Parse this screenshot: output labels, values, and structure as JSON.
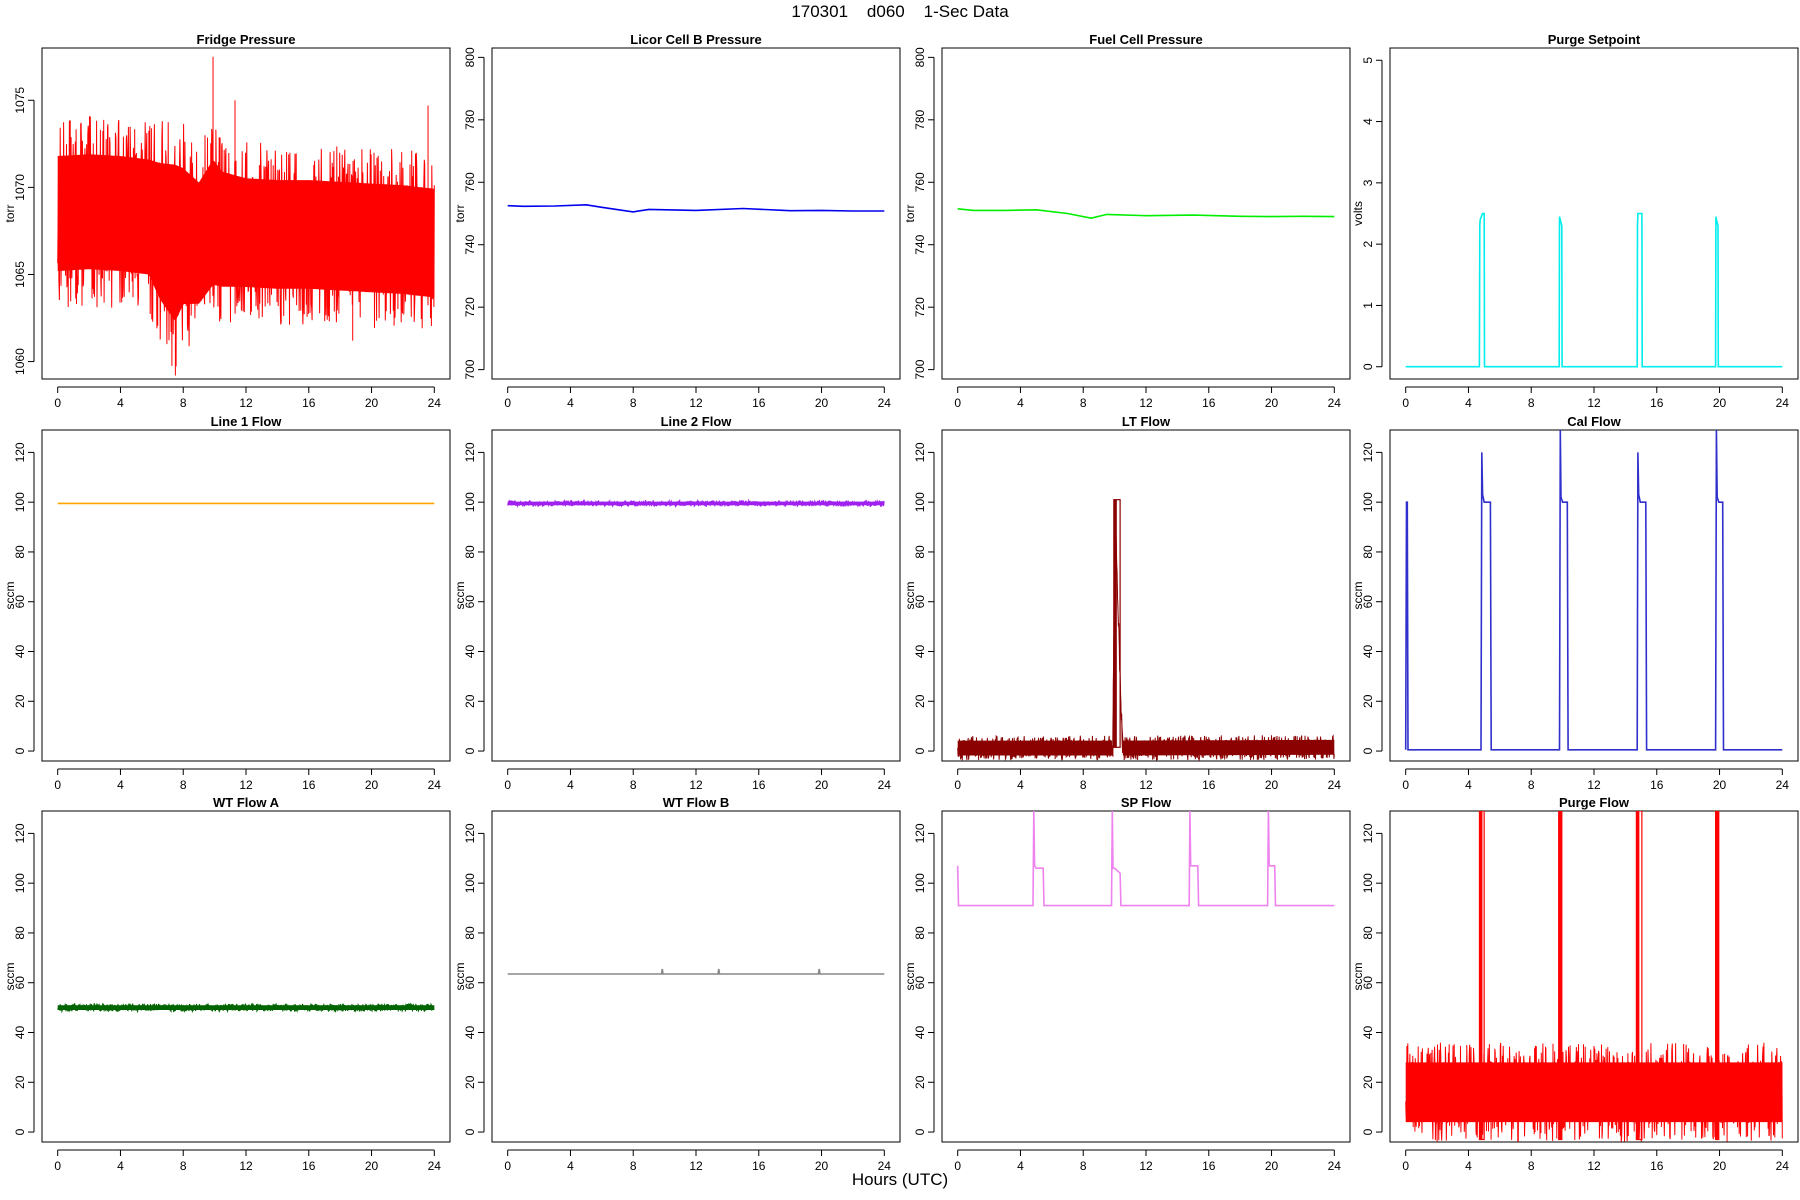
{
  "page": {
    "title": "170301    d060    1-Sec Data",
    "xlabel": "Hours (UTC)"
  },
  "chart_data": [
    {
      "type": "line",
      "title": "Fridge Pressure",
      "ylabel": "torr",
      "xlim": [
        -1,
        25
      ],
      "ylim": [
        1059,
        1078
      ],
      "xticks": [
        0,
        4,
        8,
        12,
        16,
        20,
        24
      ],
      "yticks": [
        1060,
        1065,
        1070,
        1075
      ],
      "color": "#ff0000",
      "series": [
        {
          "x": [
            0,
            2,
            4,
            5.8,
            6.5,
            7.5,
            8,
            9,
            9.9,
            10.5,
            12,
            14,
            16,
            18,
            20,
            22,
            24
          ],
          "y": [
            1068.5,
            1068.6,
            1068.5,
            1068.3,
            1067.5,
            1066.8,
            1067.2,
            1066.8,
            1068.0,
            1067.6,
            1067.4,
            1067.3,
            1067.3,
            1067.2,
            1067.1,
            1067.0,
            1066.8
          ],
          "band": [
            5.5,
            5.5,
            5.5,
            5.5,
            6.5,
            7.5,
            6.5,
            5.8,
            6.0,
            5.5,
            5.2,
            5.2,
            5.2,
            5.2,
            5.2,
            5.2,
            5.2
          ]
        }
      ],
      "spikes": [
        {
          "x": 7.5,
          "y": 1059.2
        },
        {
          "x": 9.9,
          "y": 1077.5
        },
        {
          "x": 11.3,
          "y": 1075.0
        },
        {
          "x": 23.6,
          "y": 1074.7
        },
        {
          "x": 1.2,
          "y": 1063.3
        },
        {
          "x": 18.8,
          "y": 1061.2
        }
      ]
    },
    {
      "type": "line",
      "title": "Licor Cell B Pressure",
      "ylabel": "torr",
      "xlim": [
        -1,
        25
      ],
      "ylim": [
        697,
        803
      ],
      "xticks": [
        0,
        4,
        8,
        12,
        16,
        20,
        24
      ],
      "yticks": [
        700,
        720,
        740,
        760,
        780,
        800
      ],
      "color": "#0000ee",
      "series": [
        {
          "x": [
            0,
            1,
            3,
            5,
            6,
            8,
            9,
            12,
            15,
            18,
            20,
            22,
            24
          ],
          "y": [
            752.5,
            752.3,
            752.4,
            752.8,
            752.0,
            750.5,
            751.3,
            751.0,
            751.6,
            750.9,
            751.0,
            750.8,
            750.8
          ]
        }
      ]
    },
    {
      "type": "line",
      "title": "Fuel Cell Pressure",
      "ylabel": "torr",
      "xlim": [
        -1,
        25
      ],
      "ylim": [
        697,
        803
      ],
      "xticks": [
        0,
        4,
        8,
        12,
        16,
        20,
        24
      ],
      "yticks": [
        700,
        720,
        740,
        760,
        780,
        800
      ],
      "color": "#00ee00",
      "series": [
        {
          "x": [
            0,
            1,
            3,
            5,
            7,
            8.5,
            9.5,
            12,
            15,
            18,
            20,
            22,
            24
          ],
          "y": [
            751.5,
            751.0,
            751.0,
            751.2,
            750.0,
            748.5,
            749.7,
            749.3,
            749.5,
            749.1,
            749.0,
            749.1,
            749.0
          ]
        }
      ]
    },
    {
      "type": "line",
      "title": "Purge Setpoint",
      "ylabel": "volts",
      "xlim": [
        -1,
        25
      ],
      "ylim": [
        -0.2,
        5.2
      ],
      "xticks": [
        0,
        4,
        8,
        12,
        16,
        20,
        24
      ],
      "yticks": [
        0,
        1,
        2,
        3,
        4,
        5
      ],
      "color": "#00eeee",
      "series": [
        {
          "x": [
            0,
            4.7,
            4.72,
            4.75,
            4.9,
            4.95,
            5.0,
            5.02,
            9.78,
            9.8,
            9.85,
            9.95,
            9.97,
            14.75,
            14.77,
            14.8,
            15.0,
            15.05,
            15.07,
            19.75,
            19.77,
            19.8,
            19.9,
            19.92,
            24
          ],
          "y": [
            0,
            0,
            2.3,
            2.4,
            2.5,
            2.5,
            2.5,
            0,
            0,
            2.45,
            2.4,
            2.3,
            0,
            0,
            2.3,
            2.5,
            2.5,
            2.5,
            0,
            0,
            2.45,
            2.4,
            2.3,
            0,
            0
          ]
        }
      ]
    },
    {
      "type": "line",
      "title": "Line 1 Flow",
      "ylabel": "sccm",
      "xlim": [
        -1,
        25
      ],
      "ylim": [
        -4,
        129
      ],
      "xticks": [
        0,
        4,
        8,
        12,
        16,
        20,
        24
      ],
      "yticks": [
        0,
        20,
        40,
        60,
        80,
        100,
        120
      ],
      "color": "#ffa500",
      "series": [
        {
          "x": [
            0,
            24
          ],
          "y": [
            99.5,
            99.5
          ]
        }
      ]
    },
    {
      "type": "line",
      "title": "Line 2 Flow",
      "ylabel": "sccm",
      "xlim": [
        -1,
        25
      ],
      "ylim": [
        -4,
        129
      ],
      "xticks": [
        0,
        4,
        8,
        12,
        16,
        20,
        24
      ],
      "yticks": [
        0,
        20,
        40,
        60,
        80,
        100,
        120
      ],
      "color": "#a020f0",
      "series": [
        {
          "x": [
            0,
            24
          ],
          "y": [
            99.5,
            99.5
          ],
          "band": [
            1.2,
            1.2
          ]
        }
      ]
    },
    {
      "type": "line",
      "title": "LT Flow",
      "ylabel": "sccm",
      "xlim": [
        -1,
        25
      ],
      "ylim": [
        -4,
        129
      ],
      "xticks": [
        0,
        4,
        8,
        12,
        16,
        20,
        24
      ],
      "yticks": [
        0,
        20,
        40,
        60,
        80,
        100,
        120
      ],
      "color": "#8b0000",
      "series": [
        {
          "x": [
            0,
            9.9,
            10.0,
            10.5,
            24
          ],
          "y": [
            1.2,
            1.2,
            101,
            1.2,
            1.5
          ],
          "band": [
            5,
            5,
            5,
            5,
            5
          ]
        }
      ],
      "pulses": [
        {
          "x0": 9.95,
          "x1": 10.35,
          "y": 101,
          "base": 1.5
        }
      ]
    },
    {
      "type": "line",
      "title": "Cal Flow",
      "ylabel": "sccm",
      "xlim": [
        -1,
        25
      ],
      "ylim": [
        -4,
        129
      ],
      "xticks": [
        0,
        4,
        8,
        12,
        16,
        20,
        24
      ],
      "yticks": [
        0,
        20,
        40,
        60,
        80,
        100,
        120
      ],
      "color": "#3030cc",
      "series": [
        {
          "x": [
            0,
            0.05,
            0.1,
            0.15,
            4.8,
            4.85,
            4.9,
            5.0,
            5.4,
            5.45,
            9.8,
            9.85,
            9.9,
            10.0,
            10.3,
            10.35,
            14.75,
            14.8,
            14.85,
            14.95,
            15.3,
            15.35,
            19.75,
            19.8,
            19.85,
            19.95,
            20.2,
            20.25,
            24
          ],
          "y": [
            0.5,
            100,
            100,
            0.5,
            0.5,
            120,
            103,
            100,
            100,
            0.5,
            0.5,
            129,
            102,
            100,
            100,
            0.5,
            0.5,
            120,
            103,
            100,
            100,
            0.5,
            0.5,
            129,
            102,
            100,
            100,
            0.5,
            0.5
          ]
        }
      ]
    },
    {
      "type": "line",
      "title": "WT Flow A",
      "ylabel": "sccm",
      "xlim": [
        -1,
        25
      ],
      "ylim": [
        -4,
        129
      ],
      "xticks": [
        0,
        4,
        8,
        12,
        16,
        20,
        24
      ],
      "yticks": [
        0,
        20,
        40,
        60,
        80,
        100,
        120
      ],
      "color": "#006400",
      "series": [
        {
          "x": [
            0,
            24
          ],
          "y": [
            50,
            50
          ],
          "band": [
            1.6,
            1.6
          ]
        }
      ]
    },
    {
      "type": "line",
      "title": "WT Flow B",
      "ylabel": "sccm",
      "xlim": [
        -1,
        25
      ],
      "ylim": [
        -4,
        129
      ],
      "xticks": [
        0,
        4,
        8,
        12,
        16,
        20,
        24
      ],
      "yticks": [
        0,
        20,
        40,
        60,
        80,
        100,
        120
      ],
      "color": "#888888",
      "series": [
        {
          "x": [
            0,
            9.8,
            9.85,
            9.9,
            13.4,
            13.45,
            13.5,
            19.8,
            19.85,
            19.9,
            24
          ],
          "y": [
            63.5,
            63.5,
            65.5,
            63.5,
            63.5,
            65.5,
            63.5,
            63.5,
            65.5,
            63.5,
            63.5
          ]
        }
      ]
    },
    {
      "type": "line",
      "title": "SP Flow",
      "ylabel": "sccm",
      "xlim": [
        -1,
        25
      ],
      "ylim": [
        -4,
        129
      ],
      "xticks": [
        0,
        4,
        8,
        12,
        16,
        20,
        24
      ],
      "yticks": [
        0,
        20,
        40,
        60,
        80,
        100,
        120
      ],
      "color": "#ee82ee",
      "series": [
        {
          "x": [
            0,
            0.05,
            0.15,
            4.8,
            4.85,
            4.9,
            5.0,
            5.45,
            5.5,
            9.8,
            9.85,
            9.9,
            10.0,
            10.35,
            10.4,
            14.75,
            14.8,
            14.85,
            14.95,
            15.3,
            15.35,
            19.75,
            19.8,
            19.85,
            19.95,
            20.2,
            20.25,
            24
          ],
          "y": [
            107,
            91,
            91,
            91,
            129,
            107,
            106,
            106,
            91,
            91,
            129,
            106,
            106,
            104,
            91,
            91,
            129,
            107,
            107,
            107,
            91,
            91,
            129,
            107,
            107,
            107,
            91,
            91
          ]
        }
      ]
    },
    {
      "type": "line",
      "title": "Purge Flow",
      "ylabel": "sccm",
      "xlim": [
        -1,
        25
      ],
      "ylim": [
        -4,
        129
      ],
      "xticks": [
        0,
        4,
        8,
        12,
        16,
        20,
        24
      ],
      "yticks": [
        0,
        20,
        40,
        60,
        80,
        100,
        120
      ],
      "color": "#ff0000",
      "series": [
        {
          "x": [
            0,
            24
          ],
          "y": [
            16,
            16
          ],
          "band": [
            20,
            20
          ]
        }
      ],
      "pulses": [
        {
          "x0": 4.7,
          "x1": 5.0,
          "y": 129,
          "base": -3
        },
        {
          "x0": 9.75,
          "x1": 9.95,
          "y": 129,
          "base": -3
        },
        {
          "x0": 14.7,
          "x1": 15.05,
          "y": 129,
          "base": -3
        },
        {
          "x0": 19.75,
          "x1": 19.95,
          "y": 129,
          "base": -3
        }
      ]
    }
  ]
}
